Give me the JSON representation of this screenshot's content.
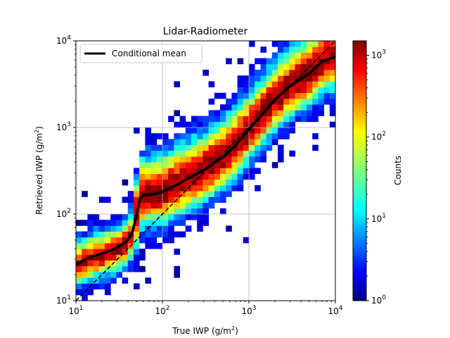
{
  "chart_data": {
    "type": "heatmap",
    "title": "Lidar-Radiometer",
    "xlabel": "True IWP (g/m",
    "ylabel": "Retrieved IWP (g/m",
    "unit_superscript": "2",
    "unit_close": ")",
    "x_scale": "log",
    "y_scale": "log",
    "xlim": [
      10,
      10000
    ],
    "ylim": [
      10,
      10000
    ],
    "x_ticks": [
      {
        "value": 10,
        "base": "10",
        "exp": "1"
      },
      {
        "value": 100,
        "base": "10",
        "exp": "2"
      },
      {
        "value": 1000,
        "base": "10",
        "exp": "3"
      },
      {
        "value": 10000,
        "base": "10",
        "exp": "4"
      }
    ],
    "y_ticks": [
      {
        "value": 10,
        "base": "10",
        "exp": "1"
      },
      {
        "value": 100,
        "base": "10",
        "exp": "2"
      },
      {
        "value": 1000,
        "base": "10",
        "exp": "3"
      },
      {
        "value": 10000,
        "base": "10",
        "exp": "4"
      }
    ],
    "grid": true,
    "colormap": "jet",
    "colorbar": {
      "label": "Counts",
      "scale": "log",
      "range": [
        1,
        1500
      ],
      "ticks": [
        {
          "value": 1,
          "base": "10",
          "exp": "0"
        },
        {
          "value": 10,
          "base": "10",
          "exp": "1"
        },
        {
          "value": 100,
          "base": "10",
          "exp": "2"
        },
        {
          "value": 1000,
          "base": "10",
          "exp": "3"
        }
      ]
    },
    "legend": {
      "placement": "top-left",
      "entries": [
        "Conditional mean"
      ]
    },
    "series": [
      {
        "name": "Conditional mean",
        "style": "solid",
        "color": "#000000",
        "x": [
          10,
          12,
          15,
          20,
          25,
          30,
          35,
          40,
          45,
          50,
          55,
          60,
          70,
          80,
          100,
          150,
          200,
          300,
          400,
          500,
          700,
          1000,
          1500,
          2000,
          3000,
          5000,
          7000,
          10000
        ],
        "y": [
          26,
          29,
          32,
          35,
          38,
          41,
          45,
          50,
          62,
          95,
          150,
          165,
          168,
          170,
          180,
          220,
          260,
          320,
          390,
          450,
          620,
          950,
          1500,
          2100,
          3000,
          4200,
          5800,
          6500
        ]
      },
      {
        "name": "1:1",
        "style": "dashed",
        "color": "#000000",
        "x": [
          10,
          10000
        ],
        "y": [
          10,
          10000
        ]
      }
    ],
    "density": {
      "description_values": "log10 count per cell, modelled: ridge near y = conditional mean",
      "bins": 45,
      "peak_count": 1500,
      "min_count": 1
    }
  }
}
